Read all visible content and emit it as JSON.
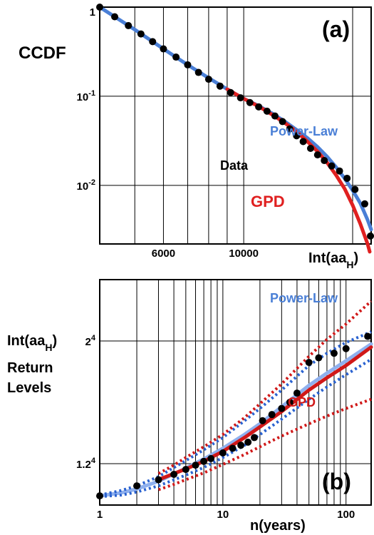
{
  "chart_data": [
    {
      "type": "line",
      "panel_label": "(a)",
      "ylabel": "CCDF",
      "xlabel": "Int(aa",
      "xlabel_sub": "H",
      "xlabel_close": ")",
      "x_scale": "log",
      "y_scale": "log",
      "xlim": [
        4000,
        22500
      ],
      "ylim": [
        0.0022,
        1.0
      ],
      "x_ticks": [
        6000,
        10000
      ],
      "x_tick_labels": [
        "6000",
        "10000"
      ],
      "y_ticks": [
        1,
        0.1,
        0.01
      ],
      "y_tick_labels": [
        {
          "base": "1",
          "exp": ""
        },
        {
          "base": "10",
          "exp": "-1"
        },
        {
          "base": "10",
          "exp": "-2"
        }
      ],
      "series": [
        {
          "name": "Data",
          "color": "#000000",
          "style": "points",
          "x": [
            4000,
            4400,
            4800,
            5200,
            5600,
            6000,
            6500,
            7000,
            7500,
            8000,
            8600,
            9200,
            9800,
            10400,
            11000,
            11600,
            12200,
            12800,
            13400,
            14000,
            14600,
            15300,
            16000,
            16700,
            17500,
            18400,
            19300,
            20300,
            21600,
            22400
          ],
          "y": [
            1.0,
            0.78,
            0.62,
            0.5,
            0.41,
            0.34,
            0.275,
            0.225,
            0.185,
            0.155,
            0.13,
            0.11,
            0.096,
            0.085,
            0.076,
            0.068,
            0.06,
            0.052,
            0.043,
            0.036,
            0.031,
            0.026,
            0.022,
            0.019,
            0.0165,
            0.0145,
            0.012,
            0.009,
            0.0062,
            0.0027
          ]
        },
        {
          "name": "Power-Law",
          "color": "#4a7fd6",
          "style": "line",
          "x": [
            4000,
            5000,
            6000,
            7000,
            8000,
            9000,
            10000,
            11000,
            12000,
            13000,
            14000,
            15000,
            16000,
            17000,
            18000,
            19000,
            20000,
            21000,
            22000,
            22500
          ],
          "y": [
            1.0,
            0.56,
            0.34,
            0.225,
            0.16,
            0.12,
            0.094,
            0.078,
            0.064,
            0.052,
            0.042,
            0.034,
            0.027,
            0.021,
            0.016,
            0.012,
            0.0088,
            0.0063,
            0.0041,
            0.0032
          ]
        },
        {
          "name": "GPD",
          "color": "#e02020",
          "style": "line",
          "x": [
            9000,
            10000,
            11000,
            12000,
            13000,
            14000,
            15000,
            16000,
            17000,
            18000,
            19000,
            20000,
            21000,
            22000,
            22300
          ],
          "y": [
            0.12,
            0.094,
            0.077,
            0.062,
            0.05,
            0.04,
            0.031,
            0.024,
            0.018,
            0.013,
            0.0092,
            0.006,
            0.0037,
            0.0022,
            0.0018
          ]
        }
      ],
      "labels": {
        "data": "Data",
        "power": "Power-Law",
        "gpd": "GPD"
      }
    },
    {
      "type": "line",
      "panel_label": "(b)",
      "ylabel_lines": [
        "Int(aa",
        "Return",
        "Levels"
      ],
      "ylabel_sub": "H",
      "ylabel_close": ")",
      "xlabel": "n(years)",
      "x_scale": "log",
      "y_scale": "linear",
      "xlim": [
        1,
        160
      ],
      "ylim": [
        9300,
        24000
      ],
      "x_ticks": [
        1,
        10,
        100
      ],
      "x_tick_labels": [
        "1",
        "10",
        "100"
      ],
      "y_ticks": [
        12000,
        20000
      ],
      "y_tick_labels": [
        {
          "base": "1.2",
          "exp": "4"
        },
        {
          "base": "2",
          "exp": "4"
        }
      ],
      "series": [
        {
          "name": "Data",
          "color": "#000000",
          "style": "points",
          "x": [
            1,
            2,
            3,
            4,
            5,
            6,
            7,
            8,
            10,
            12,
            14,
            16,
            18,
            21,
            25,
            30,
            35,
            40,
            50,
            60,
            80,
            100,
            150
          ],
          "y": [
            9900,
            10550,
            10950,
            11300,
            11620,
            11900,
            12150,
            12330,
            12700,
            13000,
            13200,
            13400,
            13700,
            14800,
            15200,
            15600,
            16000,
            16600,
            18600,
            18900,
            19200,
            19500,
            20300
          ]
        },
        {
          "name": "Power-Law",
          "color": "#8fb0ee",
          "style": "line",
          "x": [
            1,
            1.5,
            2,
            3,
            5,
            7,
            10,
            15,
            20,
            30,
            50,
            70,
            100,
            160
          ],
          "y": [
            9900,
            10100,
            10350,
            10850,
            11700,
            12300,
            13000,
            13900,
            14600,
            15700,
            17100,
            17900,
            18700,
            19800
          ]
        },
        {
          "name": "Power-Law CI upper",
          "color": "#2a62d0",
          "style": "dotted",
          "x": [
            1,
            1.5,
            2,
            3,
            5,
            7,
            10,
            15,
            20,
            30,
            50,
            70,
            100,
            160
          ],
          "y": [
            9950,
            10250,
            10550,
            11150,
            12200,
            12900,
            13700,
            14800,
            15600,
            16800,
            18400,
            19200,
            19900,
            20600
          ]
        },
        {
          "name": "Power-Law CI lower",
          "color": "#2a62d0",
          "style": "dotted",
          "x": [
            1,
            1.5,
            2,
            3,
            5,
            7,
            10,
            15,
            20,
            30,
            50,
            70,
            100,
            160
          ],
          "y": [
            9850,
            9950,
            10150,
            10550,
            11250,
            11750,
            12400,
            13200,
            13900,
            14900,
            16200,
            17000,
            17800,
            18800
          ]
        },
        {
          "name": "GPD",
          "color": "#d01818",
          "style": "line",
          "x": [
            3,
            4,
            5,
            7,
            10,
            15,
            20,
            30,
            50,
            70,
            100,
            160
          ],
          "y": [
            10950,
            11350,
            11650,
            12150,
            12800,
            13700,
            14400,
            15400,
            16800,
            17600,
            18400,
            19600
          ]
        },
        {
          "name": "GPD CI upper",
          "color": "#d01818",
          "style": "dotted",
          "x": [
            3,
            4,
            5,
            7,
            10,
            15,
            20,
            30,
            50,
            70,
            100,
            160
          ],
          "y": [
            11350,
            11900,
            12400,
            13100,
            13900,
            15000,
            15900,
            17200,
            19000,
            20100,
            21100,
            22600
          ]
        },
        {
          "name": "GPD CI lower",
          "color": "#d01818",
          "style": "dotted",
          "x": [
            3,
            4,
            5,
            7,
            10,
            15,
            20,
            30,
            50,
            70,
            100,
            160
          ],
          "y": [
            10300,
            10650,
            10950,
            11400,
            11950,
            12600,
            13100,
            13800,
            14600,
            15100,
            15600,
            16200
          ]
        }
      ],
      "labels": {
        "power": "Power-Law",
        "gpd": "GPD"
      }
    }
  ]
}
